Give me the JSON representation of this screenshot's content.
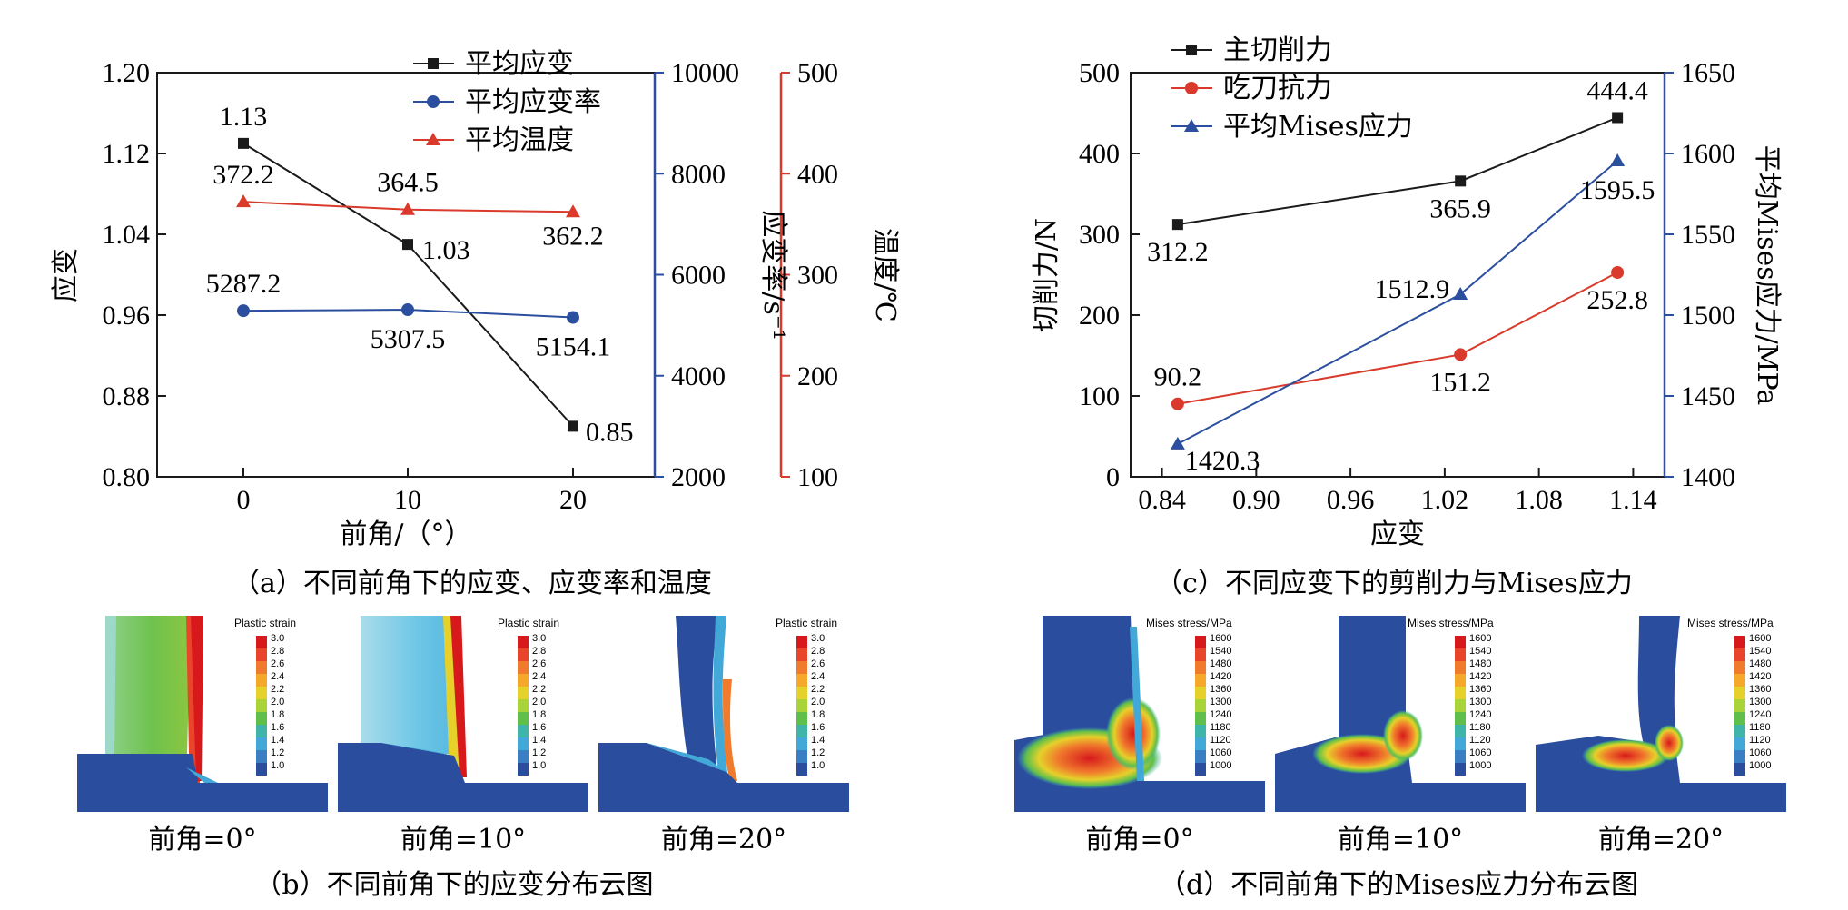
{
  "chart_data": [
    {
      "type": "line",
      "panel": "a",
      "caption": "（a）不同前角下的应变、应变率和温度",
      "xlabel": "前角/（°）",
      "ylabels": [
        "应变",
        "应变率/s⁻¹",
        "温度/℃"
      ],
      "categories": [
        0,
        10,
        20
      ],
      "axes": {
        "strain": {
          "lim": [
            0.8,
            1.2
          ],
          "ticks": [
            "0.80",
            "0.88",
            "0.96",
            "1.04",
            "1.12",
            "1.20"
          ],
          "color": "#1a1a1a"
        },
        "rate": {
          "lim": [
            2000,
            10000
          ],
          "ticks": [
            "2000",
            "4000",
            "6000",
            "8000",
            "10000"
          ],
          "color": "#2b4f9e"
        },
        "temp": {
          "lim": [
            100,
            500
          ],
          "ticks": [
            "100",
            "200",
            "300",
            "400",
            "500"
          ],
          "color": "#d93a2b"
        }
      },
      "series": [
        {
          "name": "平均应变",
          "axis": "strain",
          "color": "#1a1a1a",
          "marker": "square",
          "values": [
            1.13,
            1.03,
            0.85
          ],
          "labels": [
            "1.13",
            "1.03",
            "0.85"
          ]
        },
        {
          "name": "平均应变率",
          "axis": "rate",
          "color": "#2b4f9e",
          "marker": "circle",
          "values": [
            5287.2,
            5307.5,
            5154.1
          ],
          "labels": [
            "5287.2",
            "5307.5",
            "5154.1"
          ]
        },
        {
          "name": "平均温度",
          "axis": "temp",
          "color": "#d93a2b",
          "marker": "triangle",
          "values": [
            372.2,
            364.5,
            362.2
          ],
          "labels": [
            "372.2",
            "364.5",
            "362.2"
          ]
        }
      ],
      "xticks": [
        "0",
        "10",
        "20"
      ],
      "legend": "top-right"
    },
    {
      "type": "line",
      "panel": "c",
      "caption": "（c）不同应变下的剪削力与Mises应力",
      "xlabel": "应变",
      "ylabels": [
        "切削力/N",
        "平均Mises应力/MPa"
      ],
      "axes": {
        "force": {
          "lim": [
            0,
            500
          ],
          "ticks": [
            "0",
            "100",
            "200",
            "300",
            "400",
            "500"
          ],
          "color": "#1a1a1a"
        },
        "mises": {
          "lim": [
            1400,
            1650
          ],
          "ticks": [
            "1400",
            "1450",
            "1500",
            "1550",
            "1600",
            "1650"
          ],
          "color": "#2b4f9e"
        }
      },
      "xlim": [
        0.82,
        1.16
      ],
      "xticks": [
        "0.84",
        "0.90",
        "0.96",
        "1.02",
        "1.08",
        "1.14"
      ],
      "x": [
        0.85,
        1.03,
        1.13
      ],
      "series": [
        {
          "name": "主切削力",
          "axis": "force",
          "color": "#1a1a1a",
          "marker": "square",
          "values": [
            312.2,
            365.9,
            444.4
          ],
          "labels": [
            "312.2",
            "365.9",
            "444.4"
          ]
        },
        {
          "name": "吃刀抗力",
          "axis": "force",
          "color": "#d93a2b",
          "marker": "circle",
          "values": [
            90.2,
            151.2,
            252.8
          ],
          "labels": [
            "90.2",
            "151.2",
            "252.8"
          ]
        },
        {
          "name": "平均Mises应力",
          "axis": "mises",
          "color": "#2b4f9e",
          "marker": "triangle",
          "values": [
            1420.3,
            1512.9,
            1595.5
          ],
          "labels": [
            "1420.3",
            "1512.9",
            "1595.5"
          ]
        }
      ],
      "legend": "top-left"
    }
  ],
  "panel_b": {
    "caption": "（b）不同前角下的应变分布云图",
    "colorbar_title": "Plastic strain",
    "colorbar_ticks": [
      "3.0",
      "2.8",
      "2.6",
      "2.4",
      "2.2",
      "2.0",
      "1.8",
      "1.6",
      "1.4",
      "1.2",
      "1.0"
    ],
    "images": [
      {
        "label": "前角=0°",
        "name": "strain-contour-0deg"
      },
      {
        "label": "前角=10°",
        "name": "strain-contour-10deg"
      },
      {
        "label": "前角=20°",
        "name": "strain-contour-20deg"
      }
    ]
  },
  "panel_d": {
    "caption": "（d）不同前角下的Mises应力分布云图",
    "colorbar_title": "Mises stress/MPa",
    "colorbar_ticks": [
      "1600",
      "1540",
      "1480",
      "1420",
      "1360",
      "1300",
      "1240",
      "1180",
      "1120",
      "1060",
      "1000"
    ],
    "images": [
      {
        "label": "前角=0°",
        "name": "mises-contour-0deg"
      },
      {
        "label": "前角=10°",
        "name": "mises-contour-10deg"
      },
      {
        "label": "前角=20°",
        "name": "mises-contour-20deg"
      }
    ]
  },
  "colormap": [
    "#d7191c",
    "#e8452b",
    "#f07b2c",
    "#f5a82a",
    "#e6d12a",
    "#a8d43a",
    "#5fbf4a",
    "#3fb4a8",
    "#41a8d8",
    "#3a7ec4",
    "#2a4d9e"
  ]
}
